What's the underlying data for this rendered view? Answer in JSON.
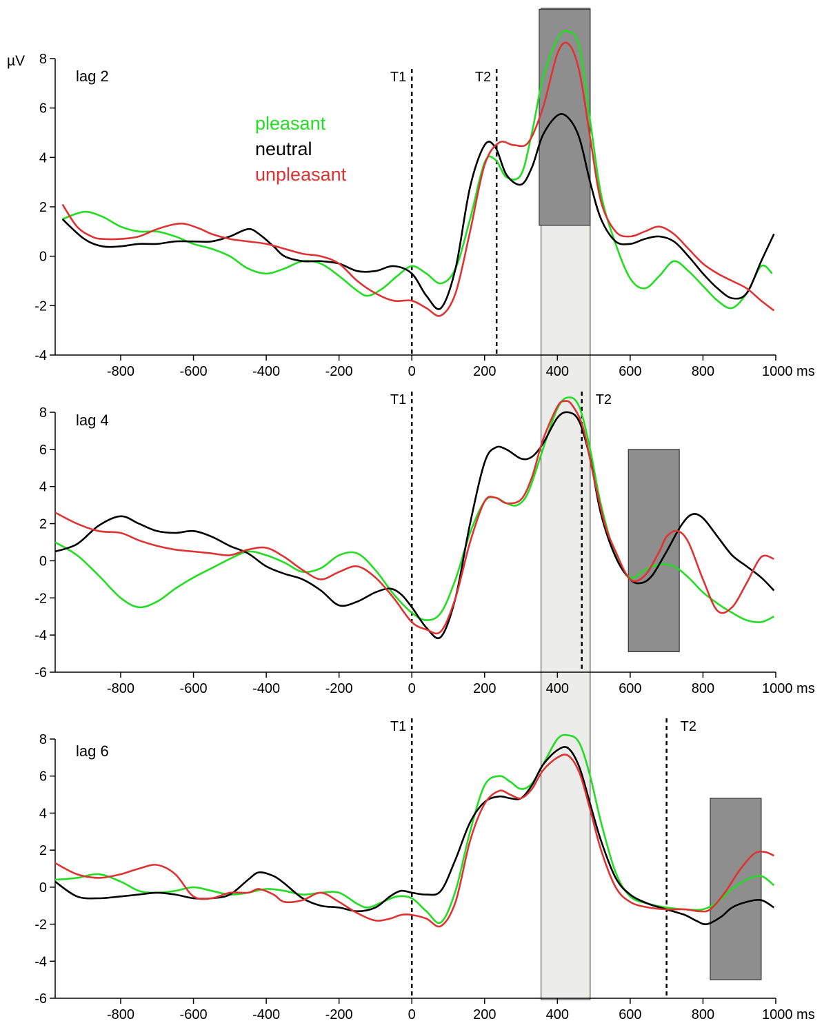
{
  "colors": {
    "pleasant": "#22dd22",
    "neutral": "#000000",
    "unpleasant": "#dd3333",
    "window_light": "#ececea",
    "window_dark": "#8e8e8e"
  },
  "ylabel": "µV",
  "legend": [
    {
      "key": "pleasant",
      "label": "pleasant"
    },
    {
      "key": "neutral",
      "label": "neutral"
    },
    {
      "key": "unpleasant",
      "label": "unpleasant"
    }
  ],
  "chart_data": [
    {
      "type": "line",
      "label": "lag 2",
      "xlabel": "ms",
      "ylabel": "µV",
      "xlim": [
        -980,
        1000
      ],
      "ylim": [
        -4,
        8
      ],
      "xticks": [
        "-800",
        "-600",
        "-400",
        "-200",
        "0",
        "200",
        "400",
        "600",
        "800",
        "1000 ms"
      ],
      "yticks": [
        "-4",
        "-2",
        "0",
        "2",
        "4",
        "6",
        "8"
      ],
      "markers": [
        {
          "label": "T1",
          "x": 0
        },
        {
          "label": "T2",
          "x": 233
        }
      ],
      "light_window": [
        355,
        490
      ],
      "dark_window": {
        "x": [
          350,
          490
        ],
        "y": [
          1.25,
          10
        ]
      },
      "series": [
        {
          "name": "pleasant",
          "x": [
            -960,
            -900,
            -850,
            -800,
            -750,
            -700,
            -650,
            -600,
            -550,
            -500,
            -450,
            -400,
            -350,
            -300,
            -250,
            -200,
            -150,
            -120,
            -80,
            -40,
            0,
            40,
            80,
            120,
            160,
            200,
            230,
            260,
            300,
            330,
            360,
            400,
            430,
            460,
            490,
            520,
            560,
            600,
            640,
            680,
            720,
            760,
            800,
            840,
            880,
            920,
            960,
            990
          ],
          "y": [
            1.5,
            1.8,
            1.6,
            1.2,
            1.0,
            1.0,
            0.8,
            0.5,
            0.3,
            0.0,
            -0.5,
            -0.7,
            -0.5,
            -0.2,
            -0.3,
            -0.8,
            -1.4,
            -1.6,
            -1.3,
            -0.8,
            -0.4,
            -0.7,
            -1.1,
            -0.5,
            1.5,
            3.8,
            3.9,
            3.2,
            3.3,
            5.0,
            7.2,
            8.8,
            9.1,
            8.5,
            5.5,
            2.5,
            0.5,
            -0.9,
            -1.3,
            -0.8,
            -0.2,
            -0.6,
            -1.2,
            -1.8,
            -2.1,
            -1.5,
            -0.4,
            -0.7
          ]
        },
        {
          "name": "neutral",
          "x": [
            -960,
            -900,
            -850,
            -800,
            -750,
            -700,
            -650,
            -600,
            -550,
            -500,
            -450,
            -420,
            -380,
            -350,
            -300,
            -250,
            -200,
            -150,
            -100,
            -50,
            0,
            40,
            80,
            120,
            160,
            200,
            230,
            260,
            300,
            330,
            360,
            400,
            430,
            460,
            490,
            520,
            560,
            600,
            640,
            680,
            720,
            760,
            800,
            840,
            880,
            920,
            960,
            995
          ],
          "y": [
            1.5,
            0.7,
            0.4,
            0.4,
            0.5,
            0.5,
            0.6,
            0.6,
            0.6,
            0.8,
            1.1,
            0.9,
            0.4,
            0.0,
            -0.2,
            -0.2,
            -0.3,
            -0.6,
            -0.6,
            -0.4,
            -0.7,
            -1.6,
            -2.1,
            -0.5,
            2.8,
            4.5,
            4.4,
            3.3,
            2.9,
            3.6,
            4.9,
            5.7,
            5.6,
            4.8,
            3.0,
            1.5,
            0.6,
            0.5,
            0.7,
            0.8,
            0.6,
            0.0,
            -0.7,
            -1.3,
            -1.7,
            -1.5,
            -0.2,
            0.9
          ]
        },
        {
          "name": "unpleasant",
          "x": [
            -960,
            -920,
            -880,
            -850,
            -800,
            -750,
            -700,
            -650,
            -620,
            -580,
            -550,
            -500,
            -450,
            -400,
            -350,
            -300,
            -250,
            -200,
            -150,
            -100,
            -50,
            0,
            40,
            80,
            120,
            160,
            200,
            240,
            280,
            320,
            360,
            400,
            430,
            460,
            490,
            520,
            560,
            600,
            640,
            680,
            720,
            760,
            800,
            840,
            880,
            920,
            960,
            995
          ],
          "y": [
            2.1,
            1.2,
            0.8,
            0.7,
            0.7,
            0.8,
            1.1,
            1.3,
            1.3,
            1.1,
            0.9,
            0.7,
            0.6,
            0.5,
            0.3,
            0.1,
            0.0,
            -0.3,
            -1.0,
            -1.5,
            -1.8,
            -1.8,
            -2.1,
            -2.4,
            -1.5,
            1.0,
            3.7,
            4.6,
            4.5,
            4.6,
            6.0,
            8.2,
            8.6,
            7.5,
            4.8,
            2.2,
            1.0,
            0.8,
            1.0,
            1.2,
            0.9,
            0.3,
            -0.3,
            -0.7,
            -1.0,
            -1.3,
            -1.8,
            -2.2
          ]
        }
      ]
    },
    {
      "type": "line",
      "label": "lag 4",
      "xlabel": "ms",
      "ylabel": "",
      "xlim": [
        -980,
        1000
      ],
      "ylim": [
        -6,
        8
      ],
      "xticks": [
        "-800",
        "-600",
        "-400",
        "-200",
        "0",
        "200",
        "400",
        "600",
        "800",
        "1000 ms"
      ],
      "yticks": [
        "-6",
        "-4",
        "-2",
        "0",
        "2",
        "4",
        "6",
        "8"
      ],
      "markers": [
        {
          "label": "T1",
          "x": 0
        },
        {
          "label": "T2",
          "x": 467
        }
      ],
      "light_window": [
        355,
        490
      ],
      "dark_window": {
        "x": [
          595,
          735
        ],
        "y": [
          -4.9,
          6.0
        ]
      },
      "series": [
        {
          "name": "pleasant",
          "x": [
            -980,
            -920,
            -860,
            -800,
            -750,
            -700,
            -650,
            -600,
            -550,
            -500,
            -450,
            -400,
            -350,
            -300,
            -250,
            -200,
            -150,
            -100,
            -50,
            0,
            40,
            80,
            120,
            160,
            200,
            230,
            260,
            290,
            320,
            360,
            400,
            430,
            460,
            490,
            520,
            560,
            600,
            640,
            680,
            720,
            760,
            800,
            840,
            880,
            920,
            960,
            995
          ],
          "y": [
            1.0,
            0.3,
            -0.8,
            -2.0,
            -2.5,
            -2.2,
            -1.5,
            -0.9,
            -0.4,
            0.1,
            0.5,
            0.3,
            -0.1,
            -0.6,
            -0.4,
            0.3,
            0.4,
            -0.5,
            -1.8,
            -2.8,
            -3.2,
            -2.8,
            -1.0,
            1.5,
            3.2,
            3.4,
            3.1,
            3.0,
            3.7,
            6.0,
            8.2,
            8.8,
            8.3,
            6.0,
            3.0,
            0.3,
            -0.9,
            -0.5,
            -0.2,
            -0.3,
            -0.9,
            -1.7,
            -2.3,
            -2.8,
            -3.2,
            -3.3,
            -3.0
          ]
        },
        {
          "name": "neutral",
          "x": [
            -980,
            -920,
            -860,
            -800,
            -750,
            -700,
            -650,
            -600,
            -550,
            -500,
            -450,
            -400,
            -350,
            -300,
            -250,
            -200,
            -150,
            -100,
            -60,
            -30,
            0,
            40,
            80,
            120,
            160,
            200,
            230,
            260,
            300,
            330,
            360,
            400,
            430,
            460,
            490,
            520,
            560,
            600,
            630,
            660,
            700,
            740,
            770,
            800,
            840,
            880,
            920,
            960,
            995
          ],
          "y": [
            0.5,
            0.9,
            1.9,
            2.4,
            2.0,
            1.6,
            1.5,
            1.6,
            1.3,
            0.8,
            0.4,
            -0.3,
            -0.7,
            -1.0,
            -1.6,
            -2.4,
            -2.2,
            -1.7,
            -1.5,
            -1.8,
            -2.5,
            -3.6,
            -4.1,
            -2.0,
            2.0,
            5.3,
            6.1,
            6.0,
            5.5,
            5.6,
            6.3,
            7.7,
            8.0,
            7.5,
            5.5,
            2.5,
            0.2,
            -1.0,
            -1.2,
            -0.8,
            0.5,
            1.9,
            2.5,
            2.3,
            1.3,
            0.3,
            -0.3,
            -0.9,
            -1.6
          ]
        },
        {
          "name": "unpleasant",
          "x": [
            -980,
            -920,
            -860,
            -800,
            -750,
            -700,
            -650,
            -600,
            -550,
            -500,
            -450,
            -400,
            -350,
            -300,
            -250,
            -200,
            -150,
            -100,
            -50,
            0,
            40,
            80,
            120,
            160,
            200,
            230,
            260,
            300,
            330,
            360,
            400,
            420,
            440,
            470,
            500,
            530,
            560,
            600,
            640,
            680,
            700,
            730,
            760,
            800,
            840,
            880,
            920,
            960,
            995
          ],
          "y": [
            2.6,
            2.0,
            1.6,
            1.5,
            1.1,
            0.8,
            0.6,
            0.5,
            0.4,
            0.3,
            0.6,
            0.7,
            0.2,
            -0.5,
            -1.0,
            -0.6,
            -0.3,
            -0.9,
            -2.0,
            -3.3,
            -3.7,
            -3.8,
            -2.0,
            1.0,
            3.2,
            3.4,
            3.1,
            3.3,
            4.5,
            6.5,
            8.3,
            8.6,
            8.4,
            7.2,
            4.5,
            2.0,
            0.5,
            -1.0,
            -0.8,
            0.5,
            1.3,
            1.6,
            1.0,
            -1.0,
            -2.7,
            -2.5,
            -1.2,
            0.2,
            0.1
          ]
        }
      ]
    },
    {
      "type": "line",
      "label": "lag 6",
      "xlabel": "ms",
      "ylabel": "",
      "xlim": [
        -980,
        1000
      ],
      "ylim": [
        -6,
        8
      ],
      "xticks": [
        "-800",
        "-600",
        "-400",
        "-200",
        "0",
        "200",
        "400",
        "600",
        "800",
        "1000 ms"
      ],
      "yticks": [
        "-6",
        "-4",
        "-2",
        "0",
        "2",
        "4",
        "6",
        "8"
      ],
      "markers": [
        {
          "label": "T1",
          "x": 0
        },
        {
          "label": "T2",
          "x": 700
        }
      ],
      "light_window": [
        355,
        490
      ],
      "dark_window": {
        "x": [
          820,
          960
        ],
        "y": [
          -5.0,
          4.8
        ]
      },
      "series": [
        {
          "name": "pleasant",
          "x": [
            -980,
            -920,
            -860,
            -800,
            -750,
            -700,
            -650,
            -600,
            -550,
            -500,
            -450,
            -400,
            -350,
            -300,
            -250,
            -200,
            -150,
            -120,
            -80,
            -40,
            0,
            40,
            80,
            120,
            160,
            200,
            240,
            270,
            300,
            330,
            360,
            400,
            430,
            460,
            490,
            520,
            560,
            600,
            650,
            700,
            750,
            800,
            840,
            880,
            920,
            960,
            995
          ],
          "y": [
            0.4,
            0.5,
            0.7,
            0.3,
            -0.2,
            -0.3,
            -0.2,
            0.0,
            -0.2,
            -0.4,
            -0.3,
            -0.1,
            -0.2,
            -0.4,
            -0.3,
            -0.3,
            -0.9,
            -1.1,
            -0.8,
            -0.5,
            -0.6,
            -1.3,
            -1.9,
            -0.2,
            3.0,
            5.5,
            6.0,
            5.7,
            5.3,
            5.6,
            6.6,
            8.0,
            8.2,
            7.8,
            6.0,
            3.5,
            0.8,
            -0.5,
            -0.9,
            -1.1,
            -1.2,
            -1.2,
            -0.8,
            -0.1,
            0.4,
            0.6,
            0.1
          ]
        },
        {
          "name": "neutral",
          "x": [
            -980,
            -920,
            -860,
            -800,
            -750,
            -700,
            -650,
            -600,
            -550,
            -500,
            -450,
            -420,
            -380,
            -350,
            -300,
            -250,
            -200,
            -150,
            -100,
            -60,
            -30,
            0,
            40,
            80,
            120,
            160,
            200,
            240,
            270,
            300,
            330,
            360,
            400,
            430,
            460,
            490,
            520,
            560,
            600,
            650,
            700,
            750,
            780,
            810,
            850,
            880,
            920,
            960,
            995
          ],
          "y": [
            0.3,
            -0.5,
            -0.6,
            -0.5,
            -0.4,
            -0.3,
            -0.4,
            -0.6,
            -0.6,
            -0.4,
            0.4,
            0.8,
            0.6,
            0.2,
            -0.6,
            -1.0,
            -1.1,
            -1.3,
            -1.1,
            -0.5,
            -0.2,
            -0.3,
            -0.4,
            -0.2,
            1.5,
            3.5,
            4.6,
            4.9,
            4.8,
            4.8,
            5.5,
            6.6,
            7.4,
            7.5,
            6.5,
            4.5,
            2.5,
            0.5,
            -0.4,
            -0.9,
            -1.2,
            -1.5,
            -1.8,
            -2.0,
            -1.6,
            -1.1,
            -0.8,
            -0.7,
            -1.1
          ]
        },
        {
          "name": "unpleasant",
          "x": [
            -980,
            -920,
            -860,
            -800,
            -750,
            -700,
            -650,
            -600,
            -550,
            -500,
            -450,
            -420,
            -380,
            -350,
            -300,
            -250,
            -200,
            -150,
            -100,
            -60,
            -30,
            0,
            40,
            80,
            120,
            160,
            200,
            240,
            270,
            300,
            330,
            360,
            400,
            430,
            460,
            490,
            520,
            560,
            600,
            650,
            700,
            750,
            790,
            820,
            860,
            900,
            940,
            970,
            995
          ],
          "y": [
            1.3,
            0.7,
            0.5,
            0.7,
            1.0,
            1.2,
            0.7,
            -0.5,
            -0.6,
            -0.3,
            -0.3,
            -0.1,
            -0.4,
            -0.8,
            -0.7,
            -0.3,
            -0.8,
            -1.4,
            -1.8,
            -1.7,
            -1.5,
            -1.5,
            -1.7,
            -2.1,
            -0.8,
            2.5,
            4.5,
            5.2,
            5.0,
            4.8,
            5.3,
            6.3,
            7.0,
            7.1,
            6.2,
            4.2,
            2.0,
            0.0,
            -0.8,
            -1.1,
            -1.2,
            -1.2,
            -1.3,
            -1.2,
            -0.3,
            0.9,
            1.8,
            1.9,
            1.7
          ]
        }
      ]
    }
  ]
}
